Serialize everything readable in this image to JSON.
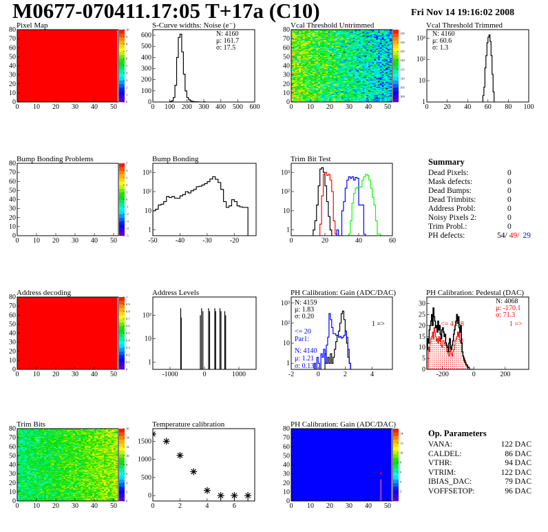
{
  "header": {
    "title": "M0677-070411.17:05 T+17a (C10)",
    "date": "Fri Nov 14 19:16:02 2008"
  },
  "summary": {
    "title": "Summary",
    "rows": [
      {
        "label": "Dead Pixels:",
        "value": "0"
      },
      {
        "label": "Mask defects:",
        "value": "0"
      },
      {
        "label": "Dead Bumps:",
        "value": "0"
      },
      {
        "label": "Dead Trimbits:",
        "value": "0"
      },
      {
        "label": "Address Probl:",
        "value": "0"
      },
      {
        "label": "Noisy Pixels 2:",
        "value": "0"
      },
      {
        "label": "Trim Probl.:",
        "value": "0"
      }
    ],
    "ph_defects": {
      "label": "PH defects:",
      "v1": "54/",
      "v2": "49/",
      "v3": "29",
      "c2": "#ff0000",
      "c3": "#0000ff"
    }
  },
  "op_params": {
    "title": "Op. Parameters",
    "rows": [
      {
        "label": "VANA:",
        "value": "122 DAC"
      },
      {
        "label": "CALDEL:",
        "value": "86 DAC"
      },
      {
        "label": "VTHR:",
        "value": "94 DAC"
      },
      {
        "label": "VTRIM:",
        "value": "122 DAC"
      },
      {
        "label": "IBIAS_DAC:",
        "value": "79 DAC"
      },
      {
        "label": "VOFFSETOP:",
        "value": "96 DAC"
      }
    ]
  },
  "chart_data": [
    {
      "id": "pixel-map",
      "title": "Pixel Map",
      "type": "heatmap",
      "xlim": [
        0,
        52.5
      ],
      "ylim": [
        0,
        80
      ],
      "xticks": [
        0,
        10,
        20,
        30,
        40,
        50
      ],
      "yticks": [
        0,
        10,
        20,
        30,
        40,
        50,
        60,
        70,
        80
      ],
      "zlim": [
        0,
        10
      ],
      "zticks": [
        0,
        1,
        2,
        3,
        4,
        5,
        6,
        7,
        8,
        9,
        10
      ],
      "fill": {
        "mode": "uniform",
        "value": 10
      }
    },
    {
      "id": "noise",
      "title": "S-Curve widths: Noise (e⁻)",
      "type": "bar",
      "xlim": [
        0,
        600
      ],
      "ylim": [
        0,
        650
      ],
      "xticks": [
        0,
        100,
        200,
        300,
        400,
        500,
        600
      ],
      "yticks": [
        0,
        100,
        200,
        300,
        400,
        500,
        600
      ],
      "series": [
        {
          "x0": 100,
          "width": 10,
          "color": "#000000",
          "values": [
            5,
            10,
            40,
            150,
            400,
            580,
            610,
            450,
            250,
            100,
            40,
            20,
            10,
            5,
            3,
            2,
            2,
            0,
            0,
            0,
            2
          ]
        }
      ],
      "stats": [
        {
          "text": "N: 4160",
          "color": "#000000"
        },
        {
          "text": "μ: 161.7",
          "color": "#000000"
        },
        {
          "text": "σ: 17.5",
          "color": "#000000"
        }
      ]
    },
    {
      "id": "vcal-untrimmed",
      "title": "Vcal Threshold Untrimmed",
      "type": "heatmap",
      "xlim": [
        0,
        52.5
      ],
      "ylim": [
        0,
        80
      ],
      "xticks": [
        0,
        10,
        20,
        30,
        40,
        50
      ],
      "yticks": [
        0,
        10,
        20,
        30,
        40,
        50,
        60,
        70,
        80
      ],
      "zlim": [
        97,
        137
      ],
      "zticks": [
        100,
        105,
        110,
        115,
        120,
        125,
        130,
        135
      ],
      "fill": {
        "mode": "noise",
        "left": 122,
        "right": 110,
        "spread": 7
      }
    },
    {
      "id": "vcal-trimmed",
      "title": "Vcal Threshold Trimmed",
      "type": "bar",
      "log": true,
      "xlim": [
        0,
        100
      ],
      "ylim": [
        1,
        2500
      ],
      "xticks": [
        0,
        20,
        40,
        60,
        80,
        100
      ],
      "yticks": [
        1,
        10,
        100,
        1000
      ],
      "series": [
        {
          "x0": 55,
          "width": 1,
          "color": "#000000",
          "values": [
            2,
            5,
            40,
            150,
            600,
            1100,
            1400,
            700,
            150,
            20,
            3
          ]
        }
      ],
      "stats": [
        {
          "text": "N: 4160",
          "color": "#000000"
        },
        {
          "text": "μ: 60.6",
          "color": "#000000"
        },
        {
          "text": "σ:  1.3",
          "color": "#000000"
        }
      ]
    },
    {
      "id": "bump-problems",
      "title": "Bump Bonding Problems",
      "type": "heatmap",
      "xlim": [
        0,
        52.5
      ],
      "ylim": [
        0,
        80
      ],
      "xticks": [
        0,
        10,
        20,
        30,
        40,
        50
      ],
      "yticks": [
        0,
        10,
        20,
        30,
        40,
        50,
        60,
        70,
        80
      ],
      "zlim": [
        -5,
        5
      ],
      "zticks": [
        -5,
        -4,
        -3,
        -2,
        -1,
        0,
        1,
        2,
        3,
        4,
        5
      ],
      "fill": {
        "mode": "empty"
      }
    },
    {
      "id": "bump-bonding",
      "title": "Bump Bonding",
      "type": "bar",
      "log": true,
      "xlim": [
        -50,
        -12
      ],
      "ylim": [
        0.5,
        3000
      ],
      "xticks": [
        -50,
        -40,
        -30,
        -20
      ],
      "yticks": [
        1,
        10,
        100,
        1000
      ],
      "series": [
        {
          "x0": -50,
          "width": 1,
          "color": "#000000",
          "values": [
            10,
            12,
            20,
            22,
            30,
            55,
            50,
            55,
            45,
            45,
            60,
            70,
            100,
            85,
            110,
            130,
            180,
            190,
            220,
            260,
            330,
            450,
            600,
            440,
            300,
            130,
            30,
            15,
            18,
            38,
            30,
            18,
            16,
            15,
            15
          ]
        }
      ]
    },
    {
      "id": "trim-bit-test",
      "title": "Trim Bit Test",
      "type": "bar",
      "log": true,
      "xlim": [
        0,
        60
      ],
      "ylim": [
        0.5,
        3000
      ],
      "xticks": [
        0,
        20,
        40,
        60
      ],
      "yticks": [
        1,
        10,
        100,
        1000
      ],
      "series": [
        {
          "x0": 13,
          "width": 1,
          "color": "#000000",
          "values": [
            1,
            3,
            20,
            200,
            1500,
            1800,
            1000,
            200,
            30,
            5,
            1
          ]
        },
        {
          "x0": 17,
          "width": 1,
          "color": "#ff0000",
          "values": [
            2,
            60,
            800,
            1000,
            700,
            800,
            400,
            100,
            3,
            0.6
          ]
        },
        {
          "x0": 27,
          "width": 1,
          "color": "#0000ff",
          "values": [
            1,
            0,
            0,
            10,
            30,
            150,
            400,
            600,
            500,
            600,
            400,
            550,
            500,
            20,
            20,
            20,
            0.6
          ]
        },
        {
          "x0": 34,
          "width": 1,
          "color": "#00ff00",
          "values": [
            0.6,
            3,
            25,
            80,
            150,
            170,
            170,
            180,
            400,
            600,
            800,
            700,
            400,
            150,
            50,
            20,
            3,
            0.6,
            0.6
          ]
        }
      ]
    },
    {
      "id": "summary-panel",
      "title": ""
    },
    {
      "id": "address-decoding",
      "title": "Address decoding",
      "type": "heatmap",
      "xlim": [
        0,
        52.5
      ],
      "ylim": [
        0,
        80
      ],
      "xticks": [
        0,
        10,
        20,
        30,
        40,
        50
      ],
      "yticks": [
        0,
        10,
        20,
        30,
        40,
        50,
        60,
        70,
        80
      ],
      "zlim": [
        0,
        1
      ],
      "zticks": [
        0,
        0.1,
        0.2,
        0.3,
        0.4,
        0.5,
        0.6,
        0.7,
        0.8,
        0.9,
        1
      ],
      "fill": {
        "mode": "uniform",
        "value": 1
      }
    },
    {
      "id": "address-levels",
      "title": "Address Levels",
      "type": "spikes",
      "log": true,
      "xlim": [
        -1500,
        1500
      ],
      "ylim": [
        0.5,
        600
      ],
      "xticks": [
        -1000,
        0,
        1000
      ],
      "yticks": [
        1,
        10,
        100
      ],
      "peaks": [
        [
          -690,
          200
        ],
        [
          -675,
          80
        ],
        [
          -120,
          100
        ],
        [
          -85,
          200
        ],
        [
          -45,
          150
        ],
        [
          120,
          200
        ],
        [
          150,
          150
        ],
        [
          300,
          200
        ],
        [
          325,
          150
        ],
        [
          450,
          200
        ],
        [
          480,
          150
        ],
        [
          590,
          150
        ],
        [
          615,
          100
        ]
      ]
    },
    {
      "id": "ph-gain",
      "title": "PH Calibration: Gain (ADC/DAC)",
      "type": "bar",
      "log": true,
      "xlim": [
        -2,
        5.5
      ],
      "ylim": [
        0.5,
        2000
      ],
      "xticks": [
        -2,
        0,
        2,
        4
      ],
      "yticks": [
        1,
        10,
        100,
        1000
      ],
      "series": [
        {
          "x0": 0.5,
          "width": 0.1,
          "color": "#000000",
          "values": [
            3,
            1,
            2,
            1,
            3,
            1,
            2,
            5,
            12,
            25,
            40,
            100,
            300,
            400,
            150,
            40,
            10,
            2,
            1
          ]
        },
        {
          "x0": -0.3,
          "width": 0.1,
          "color": "#0000ff",
          "values": [
            1,
            0,
            2,
            1,
            0,
            3,
            2,
            5,
            1,
            8,
            20,
            300,
            150,
            60,
            30,
            30,
            25,
            25,
            20,
            22,
            18,
            20,
            25,
            40,
            20,
            5,
            1,
            0
          ]
        }
      ],
      "stats": [
        {
          "text": "N: 4159",
          "color": "#000000"
        },
        {
          "text": "μ: 1.83",
          "color": "#000000"
        },
        {
          "text": "σ: 0.20",
          "color": "#000000"
        }
      ],
      "notes": [
        {
          "text": "1 =>",
          "color": "#000000"
        },
        {
          "text": "<= 20",
          "color": "#0000ff"
        },
        {
          "text": "Par1:",
          "color": "#0000ff"
        },
        {
          "text": "N: 4140",
          "color": "#0000ff"
        },
        {
          "text": "μ: 1.21",
          "color": "#0000ff"
        },
        {
          "text": "σ: 0.13",
          "color": "#0000ff"
        }
      ]
    },
    {
      "id": "ph-pedestal",
      "title": "PH Calibration: Pedestal (DAC)",
      "type": "bar",
      "xlim": [
        -300,
        350
      ],
      "ylim": [
        0,
        33
      ],
      "xticks": [
        -200,
        0,
        200
      ],
      "yticks": [
        0,
        5,
        10,
        15,
        20,
        25,
        30
      ],
      "series": [
        {
          "x0": -290,
          "width": 5,
          "color": "#ff0000",
          "hatched": true,
          "values": [
            10,
            8,
            12,
            14,
            15,
            17,
            14,
            19,
            17,
            15,
            13,
            14,
            12,
            15,
            13,
            14,
            11,
            10,
            13,
            13,
            12,
            11,
            11,
            8,
            8,
            7,
            6,
            8,
            10,
            7,
            6,
            8,
            9,
            11,
            13,
            14,
            15,
            17,
            15,
            17,
            13,
            12,
            14,
            8,
            6,
            4,
            3,
            3,
            2,
            1
          ]
        },
        {
          "x0": -300,
          "width": 5,
          "color": "#000000",
          "values": [
            9,
            14,
            12,
            18,
            20,
            22,
            25,
            20,
            28,
            24,
            22,
            19,
            20,
            17,
            22,
            18,
            20,
            16,
            14,
            18,
            19,
            17,
            15,
            16,
            12,
            11,
            10,
            8,
            12,
            14,
            10,
            9,
            11,
            13,
            16,
            18,
            20,
            22,
            25,
            21,
            24,
            19,
            17,
            20,
            12,
            8,
            6,
            5,
            4,
            3,
            2,
            2,
            1,
            1,
            0,
            0,
            0,
            0,
            0,
            0
          ]
        }
      ],
      "stats": [
        {
          "text": "N: 4068",
          "color": "#000000"
        },
        {
          "text": "μ: -170.1",
          "color": "#ff0000"
        },
        {
          "text": "σ: 71.3",
          "color": "#ff0000"
        }
      ],
      "notes": [
        {
          "text": "<= 4158",
          "color": "#ff0000"
        },
        {
          "text": "1 =>",
          "color": "#ff0000"
        }
      ]
    },
    {
      "id": "trim-bits",
      "title": "Trim Bits",
      "type": "heatmap",
      "xlim": [
        0,
        52.5
      ],
      "ylim": [
        0,
        80
      ],
      "xticks": [
        0,
        10,
        20,
        30,
        40,
        50
      ],
      "yticks": [
        0,
        10,
        20,
        30,
        40,
        50,
        60,
        70,
        80
      ],
      "zlim": [
        0,
        16
      ],
      "zticks": [
        0,
        2,
        4,
        6,
        8,
        10,
        12,
        14,
        16
      ],
      "fill": {
        "mode": "noise",
        "left": 7.5,
        "right": 10.5,
        "spread": 1.6
      }
    },
    {
      "id": "temperature",
      "title": "Temperature calibration",
      "type": "scatter",
      "xlim": [
        0,
        7.5
      ],
      "ylim": [
        -150,
        1850
      ],
      "xticks": [
        0,
        2,
        4,
        6
      ],
      "yticks": [
        0,
        500,
        1000,
        1500
      ],
      "points": [
        [
          0,
          1700
        ],
        [
          1,
          1500
        ],
        [
          2,
          1110
        ],
        [
          3,
          660
        ],
        [
          4,
          140
        ],
        [
          5,
          0
        ],
        [
          6,
          0
        ],
        [
          7,
          0
        ]
      ]
    },
    {
      "id": "ph-gain-map",
      "title": "PH Calibration: Gain (ADC/DAC)",
      "type": "heatmap",
      "xlim": [
        0,
        52.5
      ],
      "ylim": [
        0,
        80
      ],
      "xticks": [
        0,
        10,
        20,
        30,
        40,
        50
      ],
      "yticks": [
        0,
        10,
        20,
        30,
        40,
        50,
        60,
        70,
        80
      ],
      "zlim": [
        0,
        15
      ],
      "zticks": [
        2,
        4,
        6,
        8,
        10,
        12,
        14
      ],
      "fill": {
        "mode": "uniform",
        "value": 2.2
      }
    }
  ]
}
